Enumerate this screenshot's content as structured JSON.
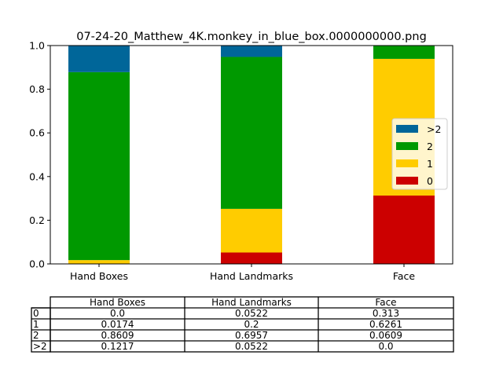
{
  "chart_data": {
    "type": "bar",
    "stacked": true,
    "title": "07-24-20_Matthew_4K.monkey_in_blue_box.0000000000.png",
    "xlabel": "",
    "ylabel": "",
    "ylim": [
      0,
      1.0
    ],
    "yticks": [
      0.0,
      0.2,
      0.4,
      0.6,
      0.8,
      1.0
    ],
    "ytick_labels": [
      "0.0",
      "0.2",
      "0.4",
      "0.6",
      "0.8",
      "1.0"
    ],
    "categories": [
      "Hand Boxes",
      "Hand Landmarks",
      "Face"
    ],
    "series": [
      {
        "name": "0",
        "color": "#cc0000",
        "values": [
          0.0,
          0.0522,
          0.313
        ]
      },
      {
        "name": "1",
        "color": "#ffcc00",
        "values": [
          0.0174,
          0.2,
          0.6261
        ]
      },
      {
        "name": "2",
        "color": "#009900",
        "values": [
          0.8609,
          0.6957,
          0.0609
        ]
      },
      {
        "name": ">2",
        "color": "#006699",
        "values": [
          0.1217,
          0.0522,
          0.0
        ]
      }
    ],
    "legend": {
      "placement": "center-right",
      "order": [
        ">2",
        "2",
        "1",
        "0"
      ]
    },
    "grid": false,
    "table": {
      "col_labels": [
        "Hand Boxes",
        "Hand Landmarks",
        "Face"
      ],
      "rows": [
        {
          "label": "0",
          "cells": [
            "0.0",
            "0.0522",
            "0.313"
          ]
        },
        {
          "label": "1",
          "cells": [
            "0.0174",
            "0.2",
            "0.6261"
          ]
        },
        {
          "label": "2",
          "cells": [
            "0.8609",
            "0.6957",
            "0.0609"
          ]
        },
        {
          "label": ">2",
          "cells": [
            "0.1217",
            "0.0522",
            "0.0"
          ]
        }
      ]
    }
  }
}
